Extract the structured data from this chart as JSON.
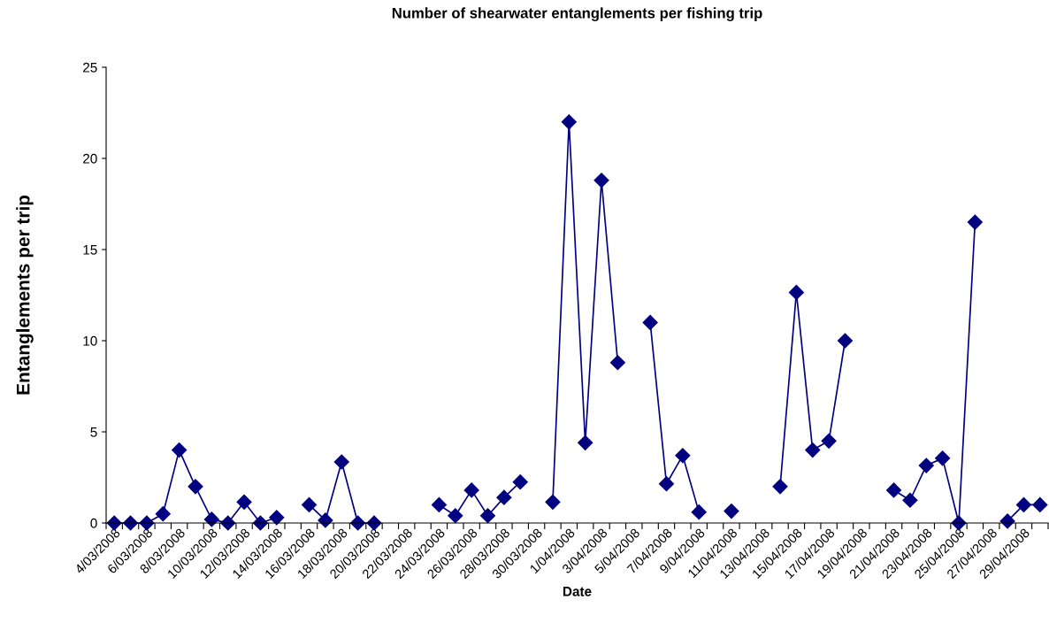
{
  "chart_data": {
    "type": "line",
    "title": "Number of shearwater entanglements per fishing trip",
    "xlabel": "Date",
    "ylabel": "Entanglements per trip",
    "categories": [
      "4/03/2008",
      null,
      "6/03/2008",
      null,
      "8/03/2008",
      null,
      "10/03/2008",
      null,
      "12/03/2008",
      null,
      "14/03/2008",
      null,
      "16/03/2008",
      null,
      "18/03/2008",
      null,
      "20/03/2008",
      null,
      "22/03/2008",
      null,
      "24/03/2008",
      null,
      "26/03/2008",
      null,
      "28/03/2008",
      null,
      "30/03/2008",
      null,
      "1/04/2008",
      null,
      "3/04/2008",
      null,
      "5/04/2008",
      null,
      "7/04/2008",
      null,
      "9/04/2008",
      null,
      "11/04/2008",
      null,
      "13/04/2008",
      null,
      "15/04/2008",
      null,
      "17/04/2008",
      null,
      "19/04/2008",
      null,
      "21/04/2008",
      null,
      "23/04/2008",
      null,
      "25/04/2008",
      null,
      "27/04/2008",
      null,
      "29/04/2008",
      null
    ],
    "series": [
      {
        "color": "#000080",
        "values": [
          0,
          0,
          0,
          0.5,
          4,
          2,
          0.2,
          0,
          1.15,
          0,
          0.3,
          null,
          1,
          0.15,
          3.35,
          0,
          0,
          null,
          null,
          null,
          1,
          0.4,
          1.8,
          0.4,
          1.4,
          2.25,
          null,
          1.15,
          22,
          4.4,
          18.8,
          8.8,
          null,
          11,
          2.15,
          3.7,
          0.6,
          null,
          0.65,
          null,
          null,
          2,
          12.65,
          4,
          4.5,
          10,
          null,
          null,
          1.8,
          1.25,
          3.15,
          3.55,
          0,
          16.5,
          null,
          0.1,
          1,
          1
        ]
      }
    ],
    "ylim": [
      0,
      25
    ],
    "yticks": [
      0,
      5,
      10,
      15,
      20,
      25
    ],
    "marker": "diamond",
    "line_style": "solid"
  }
}
